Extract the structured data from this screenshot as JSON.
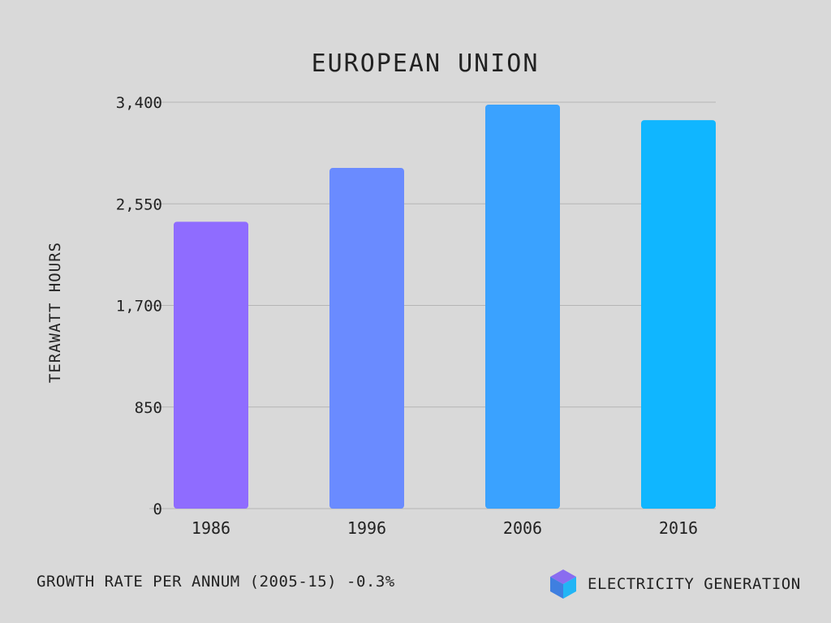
{
  "chart_data": {
    "type": "bar",
    "title": "EUROPEAN UNION",
    "ylabel": "TERAWATT HOURS",
    "xlabel": "",
    "categories": [
      "1986",
      "1996",
      "2006",
      "2016"
    ],
    "values": [
      2400,
      2850,
      3380,
      3250
    ],
    "ylim": [
      0,
      3400
    ],
    "yticks": [
      0,
      850,
      1700,
      2550,
      3400
    ],
    "ytick_labels": [
      "0",
      "850",
      "1,700",
      "2,550",
      "3,400"
    ],
    "grid": true,
    "bar_colors": [
      "#8f6cff",
      "#6a8bff",
      "#3aa2ff",
      "#10b6ff"
    ]
  },
  "footer": {
    "growth_text": "GROWTH RATE PER ANNUM (2005-15) -0.3%",
    "legend_label": "ELECTRICITY GENERATION",
    "legend_icon": "cube-icon"
  }
}
